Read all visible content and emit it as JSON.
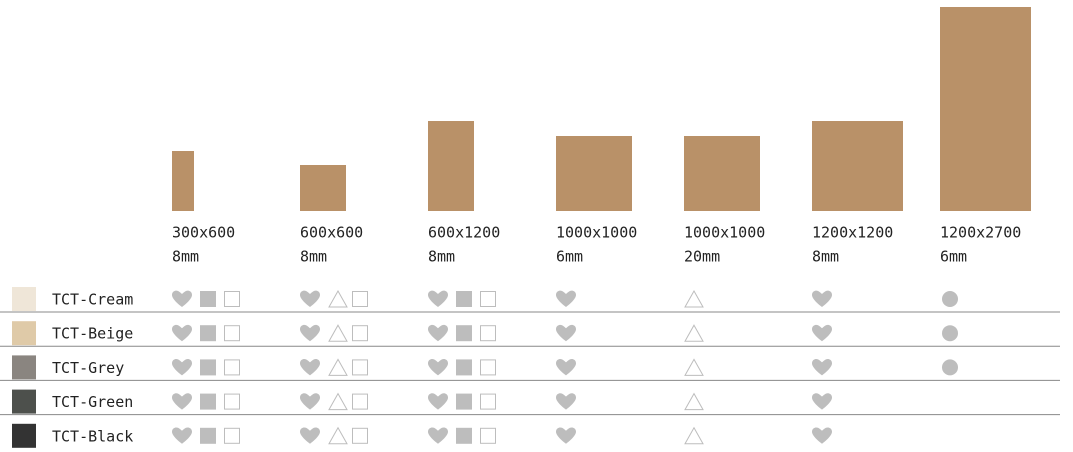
{
  "sizes": [
    {
      "dimensions": "300x600",
      "thickness": "8mm"
    },
    {
      "dimensions": "600x600",
      "thickness": "8mm"
    },
    {
      "dimensions": "600x1200",
      "thickness": "8mm"
    },
    {
      "dimensions": "1000x1000",
      "thickness": "6mm"
    },
    {
      "dimensions": "1000x1000",
      "thickness": "20mm"
    },
    {
      "dimensions": "1200x1200",
      "thickness": "8mm"
    },
    {
      "dimensions": "1200x2700",
      "thickness": "6mm"
    }
  ],
  "rows": [
    "TCT-Cream",
    "TCT-Beige",
    "TCT-Grey",
    "TCT-Green",
    "TCT-Black"
  ]
}
